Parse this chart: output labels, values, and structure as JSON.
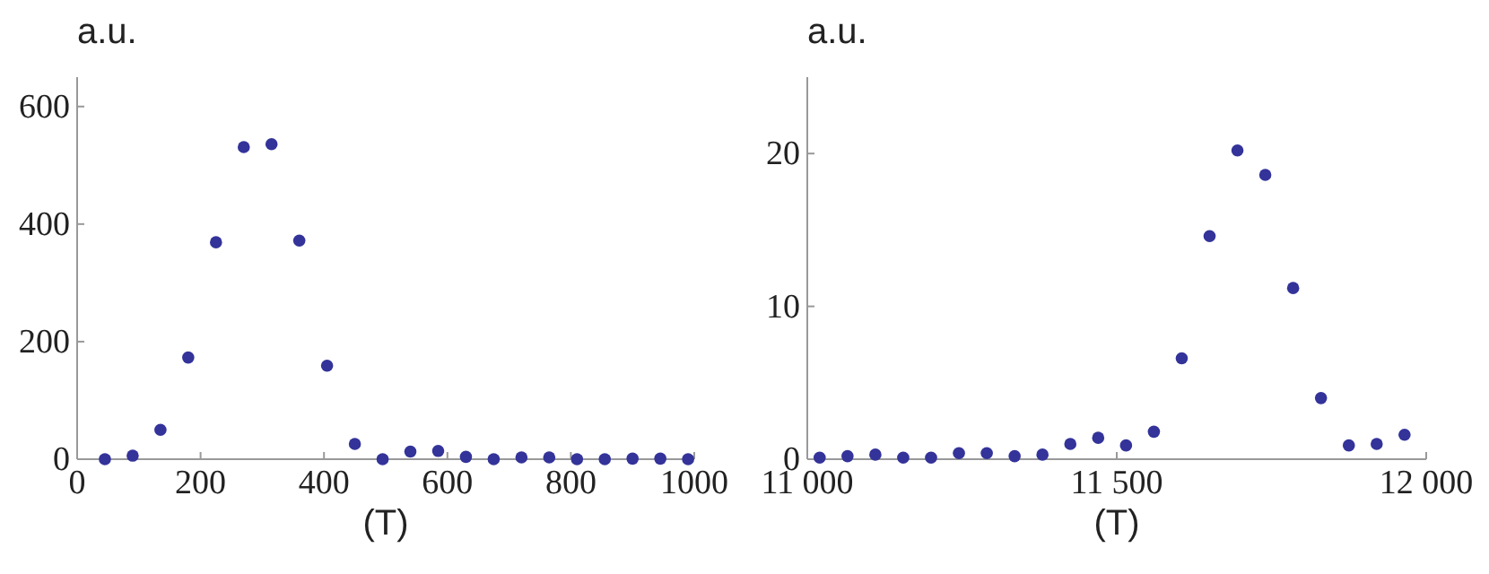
{
  "chart_data": [
    {
      "type": "scatter",
      "ylabel": "a.u.",
      "xlabel": "(T)",
      "marker": "circle",
      "grid": false,
      "xlim": [
        0,
        1000
      ],
      "xticks": [
        0,
        200,
        400,
        600,
        800,
        1000
      ],
      "ylim": [
        0,
        650
      ],
      "yticks": [
        0,
        200,
        400,
        600
      ],
      "series": [
        {
          "color": "#33339a",
          "x": [
            45,
            90,
            135,
            180,
            225,
            270,
            315,
            360,
            405,
            450,
            495,
            540,
            585,
            630,
            675,
            720,
            765,
            810,
            855,
            900,
            945,
            990
          ],
          "values": [
            0,
            6,
            50,
            173,
            369,
            531,
            536,
            372,
            159,
            26,
            0,
            13,
            14,
            4,
            0,
            3,
            3,
            0,
            0,
            1,
            1,
            0
          ]
        }
      ]
    },
    {
      "type": "scatter",
      "ylabel": "a.u.",
      "xlabel": "(T)",
      "marker": "circle",
      "grid": false,
      "xlim": [
        11000,
        12000
      ],
      "xticks": [
        {
          "value": 11000,
          "label": "11 000"
        },
        {
          "value": 11500,
          "label": "11 500"
        },
        {
          "value": 12000,
          "label": "12 000"
        }
      ],
      "ylim": [
        0,
        25
      ],
      "yticks": [
        0,
        10,
        20
      ],
      "series": [
        {
          "color": "#33339a",
          "x": [
            11020,
            11065,
            11110,
            11155,
            11200,
            11245,
            11290,
            11335,
            11380,
            11425,
            11470,
            11515,
            11560,
            11605,
            11650,
            11695,
            11740,
            11785,
            11830,
            11875,
            11920,
            11965
          ],
          "values": [
            0.1,
            0.2,
            0.3,
            0.1,
            0.1,
            0.4,
            0.4,
            0.2,
            0.3,
            1.0,
            1.4,
            0.9,
            1.8,
            6.6,
            14.6,
            20.2,
            18.6,
            11.2,
            4.0,
            0.9,
            1.0,
            1.6
          ]
        }
      ]
    }
  ]
}
